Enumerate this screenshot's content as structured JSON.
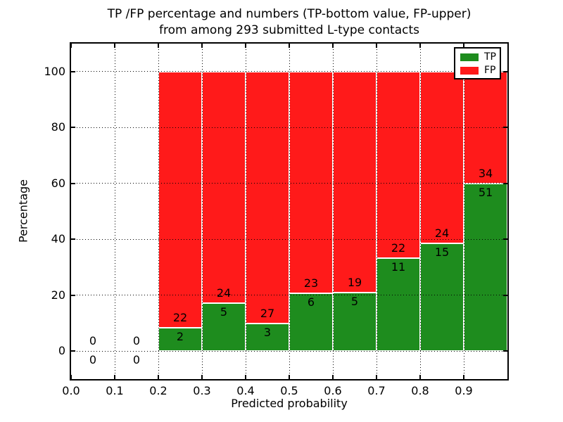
{
  "figure": {
    "background": "#ffffff"
  },
  "chart_data": {
    "type": "bar",
    "stacked": true,
    "normalized": "each non-empty bin's TP+FP segments sum to 100%; labels show raw counts",
    "title": "TP /FP percentage and numbers (TP-bottom value, FP-upper) from among 293 submitted L-type contacts",
    "title_lines": [
      "TP /FP percentage and numbers (TP-bottom value, FP-upper)",
      "from among 293 submitted L-type contacts"
    ],
    "xlabel": "Predicted probability",
    "ylabel": "Percentage",
    "xlim": [
      0.0,
      1.0
    ],
    "ylim": [
      -10,
      110
    ],
    "xtick_labels": [
      "0.0",
      "0.1",
      "0.2",
      "0.3",
      "0.4",
      "0.5",
      "0.6",
      "0.7",
      "0.8",
      "0.9"
    ],
    "ytick_labels": [
      "0",
      "20",
      "40",
      "60",
      "80",
      "100"
    ],
    "grid": {
      "style": "dotted",
      "color": "#000000",
      "on": true
    },
    "bin_width": 0.1,
    "categories": [
      "0.0-0.1",
      "0.1-0.2",
      "0.2-0.3",
      "0.3-0.4",
      "0.4-0.5",
      "0.5-0.6",
      "0.6-0.7",
      "0.7-0.8",
      "0.8-0.9",
      "0.9-1.0"
    ],
    "series": [
      {
        "name": "TP",
        "color": "#1e8c1e",
        "counts": [
          0,
          0,
          2,
          5,
          3,
          6,
          5,
          11,
          15,
          51
        ],
        "pct": [
          0,
          0,
          8.333,
          17.241,
          10.0,
          20.69,
          20.833,
          33.333,
          38.462,
          60.0
        ]
      },
      {
        "name": "FP",
        "color": "#ff1a1a",
        "counts": [
          0,
          0,
          22,
          24,
          27,
          23,
          19,
          22,
          24,
          34
        ],
        "pct": [
          0,
          0,
          91.667,
          82.759,
          90.0,
          79.31,
          79.167,
          66.667,
          61.538,
          40.0
        ]
      }
    ],
    "total_submitted": 293,
    "legend": {
      "position": "upper right",
      "entries": [
        "TP",
        "FP"
      ]
    }
  }
}
